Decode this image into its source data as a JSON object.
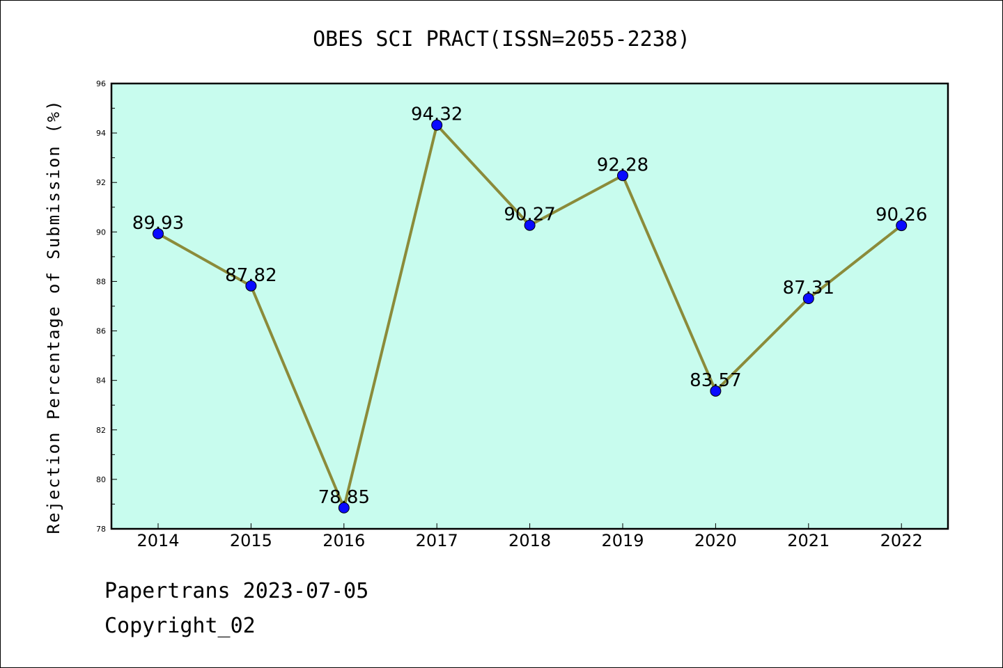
{
  "footer": {
    "line1": "Papertrans 2023-07-05",
    "line2": "Copyright_02"
  },
  "colors": {
    "plot_background": "#c8fcee",
    "line": "#8b8b3a",
    "marker": "#0a0aff"
  },
  "chart_data": {
    "type": "line",
    "title": "OBES SCI PRACT(ISSN=2055-2238)",
    "xlabel": "",
    "ylabel": "Rejection Percentage of Submission (%)",
    "categories": [
      "2014",
      "2015",
      "2016",
      "2017",
      "2018",
      "2019",
      "2020",
      "2021",
      "2022"
    ],
    "series": [
      {
        "values": [
          89.93,
          87.82,
          78.85,
          94.32,
          90.27,
          92.28,
          83.57,
          87.31,
          90.26
        ],
        "labels": [
          "89.93",
          "87.82",
          "78.85",
          "94.32",
          "90.27",
          "92.28",
          "83.57",
          "87.31",
          "90.26"
        ]
      }
    ],
    "ylim": [
      78,
      96
    ],
    "yticks": [
      "78",
      "80",
      "82",
      "84",
      "86",
      "88",
      "90",
      "92",
      "94",
      "96"
    ],
    "grid": false,
    "legend": "none"
  }
}
